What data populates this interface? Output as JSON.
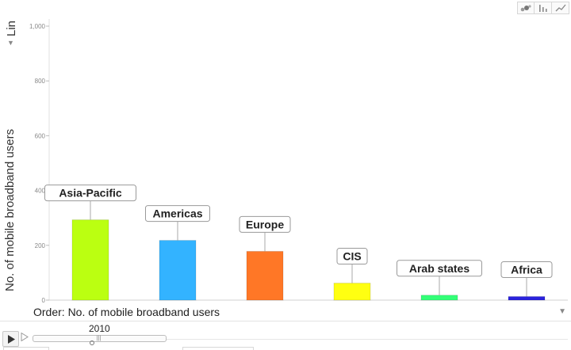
{
  "chart_type_buttons": [
    {
      "name": "bubble-chart-icon"
    },
    {
      "name": "bar-chart-icon"
    },
    {
      "name": "line-chart-icon"
    }
  ],
  "scale": {
    "label": "Lin"
  },
  "order": {
    "label": "Order: No. of mobile broadband users"
  },
  "timeline": {
    "year": "2010",
    "progress": 0.45
  },
  "colors": {
    "Asia-Pacific": "#bbff11",
    "Americas": "#33b3ff",
    "Europe": "#ff7726",
    "CIS": "#ffff11",
    "Arab states": "#33ff77",
    "Africa": "#2a22dd"
  },
  "chart_data": {
    "type": "bar",
    "categories": [
      "Asia-Pacific",
      "Americas",
      "Europe",
      "CIS",
      "Arab states",
      "Africa"
    ],
    "values": [
      293,
      218,
      178,
      62,
      18,
      13
    ],
    "ylabel": "No. of mobile broadband users",
    "xlabel": "",
    "ylim": [
      0,
      1000
    ],
    "yticks": [
      0,
      200,
      400,
      600,
      800,
      1000
    ],
    "ytick_labels": [
      "0",
      "200",
      "400",
      "600",
      "800",
      "1,000"
    ],
    "grid": false,
    "legend": "none"
  }
}
